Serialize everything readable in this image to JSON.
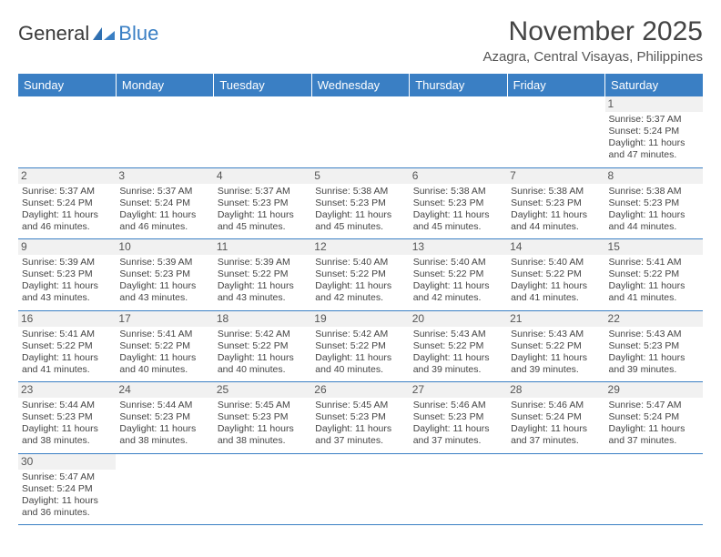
{
  "brand": {
    "part1": "General",
    "part2": "Blue"
  },
  "title": "November 2025",
  "location": "Azagra, Central Visayas, Philippines",
  "colors": {
    "header_bg": "#3a7fc4",
    "header_text": "#ffffff",
    "cell_border": "#3a7fc4",
    "daynum_bg": "#f1f1f1",
    "body_text": "#444444"
  },
  "weekdays": [
    "Sunday",
    "Monday",
    "Tuesday",
    "Wednesday",
    "Thursday",
    "Friday",
    "Saturday"
  ],
  "weeks": [
    [
      {
        "empty": true
      },
      {
        "empty": true
      },
      {
        "empty": true
      },
      {
        "empty": true
      },
      {
        "empty": true
      },
      {
        "empty": true
      },
      {
        "day": "1",
        "sunrise": "Sunrise: 5:37 AM",
        "sunset": "Sunset: 5:24 PM",
        "daylight1": "Daylight: 11 hours",
        "daylight2": "and 47 minutes."
      }
    ],
    [
      {
        "day": "2",
        "sunrise": "Sunrise: 5:37 AM",
        "sunset": "Sunset: 5:24 PM",
        "daylight1": "Daylight: 11 hours",
        "daylight2": "and 46 minutes."
      },
      {
        "day": "3",
        "sunrise": "Sunrise: 5:37 AM",
        "sunset": "Sunset: 5:24 PM",
        "daylight1": "Daylight: 11 hours",
        "daylight2": "and 46 minutes."
      },
      {
        "day": "4",
        "sunrise": "Sunrise: 5:37 AM",
        "sunset": "Sunset: 5:23 PM",
        "daylight1": "Daylight: 11 hours",
        "daylight2": "and 45 minutes."
      },
      {
        "day": "5",
        "sunrise": "Sunrise: 5:38 AM",
        "sunset": "Sunset: 5:23 PM",
        "daylight1": "Daylight: 11 hours",
        "daylight2": "and 45 minutes."
      },
      {
        "day": "6",
        "sunrise": "Sunrise: 5:38 AM",
        "sunset": "Sunset: 5:23 PM",
        "daylight1": "Daylight: 11 hours",
        "daylight2": "and 45 minutes."
      },
      {
        "day": "7",
        "sunrise": "Sunrise: 5:38 AM",
        "sunset": "Sunset: 5:23 PM",
        "daylight1": "Daylight: 11 hours",
        "daylight2": "and 44 minutes."
      },
      {
        "day": "8",
        "sunrise": "Sunrise: 5:38 AM",
        "sunset": "Sunset: 5:23 PM",
        "daylight1": "Daylight: 11 hours",
        "daylight2": "and 44 minutes."
      }
    ],
    [
      {
        "day": "9",
        "sunrise": "Sunrise: 5:39 AM",
        "sunset": "Sunset: 5:23 PM",
        "daylight1": "Daylight: 11 hours",
        "daylight2": "and 43 minutes."
      },
      {
        "day": "10",
        "sunrise": "Sunrise: 5:39 AM",
        "sunset": "Sunset: 5:23 PM",
        "daylight1": "Daylight: 11 hours",
        "daylight2": "and 43 minutes."
      },
      {
        "day": "11",
        "sunrise": "Sunrise: 5:39 AM",
        "sunset": "Sunset: 5:22 PM",
        "daylight1": "Daylight: 11 hours",
        "daylight2": "and 43 minutes."
      },
      {
        "day": "12",
        "sunrise": "Sunrise: 5:40 AM",
        "sunset": "Sunset: 5:22 PM",
        "daylight1": "Daylight: 11 hours",
        "daylight2": "and 42 minutes."
      },
      {
        "day": "13",
        "sunrise": "Sunrise: 5:40 AM",
        "sunset": "Sunset: 5:22 PM",
        "daylight1": "Daylight: 11 hours",
        "daylight2": "and 42 minutes."
      },
      {
        "day": "14",
        "sunrise": "Sunrise: 5:40 AM",
        "sunset": "Sunset: 5:22 PM",
        "daylight1": "Daylight: 11 hours",
        "daylight2": "and 41 minutes."
      },
      {
        "day": "15",
        "sunrise": "Sunrise: 5:41 AM",
        "sunset": "Sunset: 5:22 PM",
        "daylight1": "Daylight: 11 hours",
        "daylight2": "and 41 minutes."
      }
    ],
    [
      {
        "day": "16",
        "sunrise": "Sunrise: 5:41 AM",
        "sunset": "Sunset: 5:22 PM",
        "daylight1": "Daylight: 11 hours",
        "daylight2": "and 41 minutes."
      },
      {
        "day": "17",
        "sunrise": "Sunrise: 5:41 AM",
        "sunset": "Sunset: 5:22 PM",
        "daylight1": "Daylight: 11 hours",
        "daylight2": "and 40 minutes."
      },
      {
        "day": "18",
        "sunrise": "Sunrise: 5:42 AM",
        "sunset": "Sunset: 5:22 PM",
        "daylight1": "Daylight: 11 hours",
        "daylight2": "and 40 minutes."
      },
      {
        "day": "19",
        "sunrise": "Sunrise: 5:42 AM",
        "sunset": "Sunset: 5:22 PM",
        "daylight1": "Daylight: 11 hours",
        "daylight2": "and 40 minutes."
      },
      {
        "day": "20",
        "sunrise": "Sunrise: 5:43 AM",
        "sunset": "Sunset: 5:22 PM",
        "daylight1": "Daylight: 11 hours",
        "daylight2": "and 39 minutes."
      },
      {
        "day": "21",
        "sunrise": "Sunrise: 5:43 AM",
        "sunset": "Sunset: 5:22 PM",
        "daylight1": "Daylight: 11 hours",
        "daylight2": "and 39 minutes."
      },
      {
        "day": "22",
        "sunrise": "Sunrise: 5:43 AM",
        "sunset": "Sunset: 5:23 PM",
        "daylight1": "Daylight: 11 hours",
        "daylight2": "and 39 minutes."
      }
    ],
    [
      {
        "day": "23",
        "sunrise": "Sunrise: 5:44 AM",
        "sunset": "Sunset: 5:23 PM",
        "daylight1": "Daylight: 11 hours",
        "daylight2": "and 38 minutes."
      },
      {
        "day": "24",
        "sunrise": "Sunrise: 5:44 AM",
        "sunset": "Sunset: 5:23 PM",
        "daylight1": "Daylight: 11 hours",
        "daylight2": "and 38 minutes."
      },
      {
        "day": "25",
        "sunrise": "Sunrise: 5:45 AM",
        "sunset": "Sunset: 5:23 PM",
        "daylight1": "Daylight: 11 hours",
        "daylight2": "and 38 minutes."
      },
      {
        "day": "26",
        "sunrise": "Sunrise: 5:45 AM",
        "sunset": "Sunset: 5:23 PM",
        "daylight1": "Daylight: 11 hours",
        "daylight2": "and 37 minutes."
      },
      {
        "day": "27",
        "sunrise": "Sunrise: 5:46 AM",
        "sunset": "Sunset: 5:23 PM",
        "daylight1": "Daylight: 11 hours",
        "daylight2": "and 37 minutes."
      },
      {
        "day": "28",
        "sunrise": "Sunrise: 5:46 AM",
        "sunset": "Sunset: 5:24 PM",
        "daylight1": "Daylight: 11 hours",
        "daylight2": "and 37 minutes."
      },
      {
        "day": "29",
        "sunrise": "Sunrise: 5:47 AM",
        "sunset": "Sunset: 5:24 PM",
        "daylight1": "Daylight: 11 hours",
        "daylight2": "and 37 minutes."
      }
    ],
    [
      {
        "day": "30",
        "sunrise": "Sunrise: 5:47 AM",
        "sunset": "Sunset: 5:24 PM",
        "daylight1": "Daylight: 11 hours",
        "daylight2": "and 36 minutes."
      },
      {
        "empty": true
      },
      {
        "empty": true
      },
      {
        "empty": true
      },
      {
        "empty": true
      },
      {
        "empty": true
      },
      {
        "empty": true
      }
    ]
  ]
}
